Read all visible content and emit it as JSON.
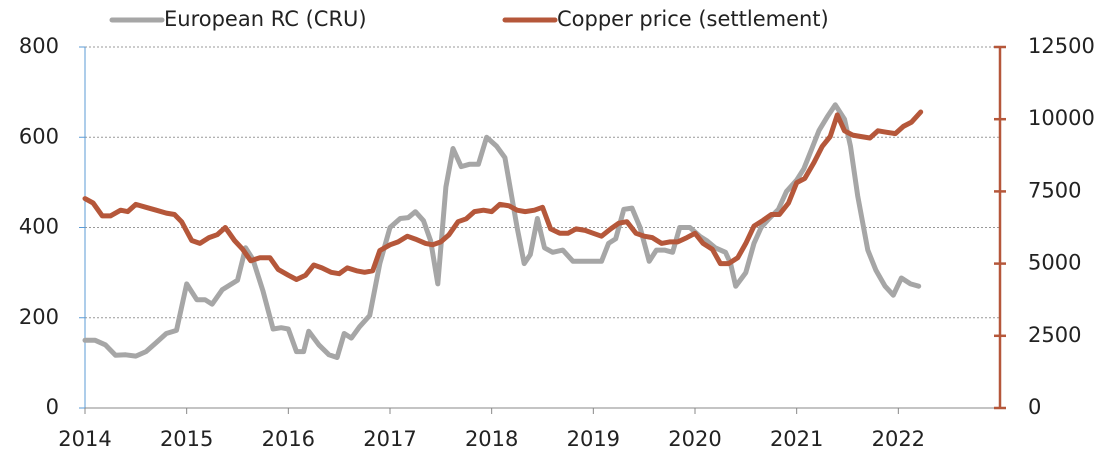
{
  "chart_data": {
    "type": "line",
    "xlim": [
      2014,
      2023
    ],
    "xticks": [
      2014,
      2015,
      2016,
      2017,
      2018,
      2019,
      2020,
      2021,
      2022
    ],
    "ylim": [
      0,
      800
    ],
    "yticks": [
      0,
      200,
      400,
      600,
      800
    ],
    "y2lim": [
      0,
      12500
    ],
    "y2ticks": [
      0,
      2500,
      5000,
      7500,
      10000,
      12500
    ],
    "grid": true,
    "legend": "top",
    "series": [
      {
        "name": "European RC (CRU)",
        "color": "#a6a6a6",
        "x": [
          2014.0,
          2014.1,
          2014.2,
          2014.3,
          2014.4,
          2014.5,
          2014.6,
          2014.7,
          2014.8,
          2014.9,
          2015.0,
          2015.1,
          2015.18,
          2015.25,
          2015.35,
          2015.5,
          2015.58,
          2015.65,
          2015.75,
          2015.85,
          2015.93,
          2016.0,
          2016.08,
          2016.15,
          2016.2,
          2016.3,
          2016.4,
          2016.48,
          2016.55,
          2016.62,
          2016.7,
          2016.8,
          2016.9,
          2017.0,
          2017.1,
          2017.18,
          2017.25,
          2017.33,
          2017.4,
          2017.47,
          2017.55,
          2017.62,
          2017.7,
          2017.78,
          2017.87,
          2017.95,
          2018.05,
          2018.13,
          2018.25,
          2018.32,
          2018.38,
          2018.45,
          2018.52,
          2018.6,
          2018.7,
          2018.8,
          2018.9,
          2019.0,
          2019.08,
          2019.15,
          2019.22,
          2019.3,
          2019.38,
          2019.46,
          2019.55,
          2019.62,
          2019.7,
          2019.78,
          2019.85,
          2019.95,
          2020.05,
          2020.12,
          2020.2,
          2020.3,
          2020.35,
          2020.4,
          2020.5,
          2020.58,
          2020.65,
          2020.73,
          2020.82,
          2020.9,
          2021.0,
          2021.07,
          2021.15,
          2021.22,
          2021.3,
          2021.38,
          2021.47,
          2021.53,
          2021.6,
          2021.7,
          2021.78,
          2021.87,
          2021.95,
          2022.03,
          2022.12,
          2022.2
        ],
        "values": [
          150,
          150,
          140,
          117,
          118,
          115,
          125,
          145,
          165,
          172,
          275,
          240,
          240,
          230,
          262,
          283,
          355,
          330,
          260,
          175,
          178,
          175,
          125,
          125,
          170,
          140,
          118,
          112,
          165,
          155,
          180,
          205,
          320,
          400,
          420,
          422,
          435,
          415,
          370,
          275,
          490,
          575,
          535,
          540,
          540,
          600,
          580,
          555,
          400,
          320,
          340,
          420,
          355,
          345,
          350,
          325,
          325,
          325,
          325,
          365,
          375,
          440,
          443,
          400,
          325,
          350,
          350,
          345,
          400,
          400,
          380,
          370,
          355,
          345,
          320,
          270,
          300,
          365,
          400,
          420,
          440,
          480,
          505,
          530,
          575,
          615,
          645,
          672,
          640,
          580,
          470,
          350,
          305,
          270,
          250,
          288,
          275,
          270
        ]
      },
      {
        "name": "Copper price (settlement)",
        "color": "#b5573a",
        "axis": "y2",
        "x": [
          2014.0,
          2014.08,
          2014.17,
          2014.25,
          2014.35,
          2014.42,
          2014.5,
          2014.6,
          2014.7,
          2014.8,
          2014.88,
          2014.95,
          2015.05,
          2015.13,
          2015.22,
          2015.3,
          2015.38,
          2015.47,
          2015.55,
          2015.63,
          2015.72,
          2015.82,
          2015.9,
          2016.0,
          2016.08,
          2016.17,
          2016.25,
          2016.33,
          2016.42,
          2016.5,
          2016.58,
          2016.67,
          2016.75,
          2016.83,
          2016.9,
          2017.0,
          2017.08,
          2017.17,
          2017.25,
          2017.35,
          2017.42,
          2017.5,
          2017.58,
          2017.67,
          2017.75,
          2017.83,
          2017.92,
          2018.0,
          2018.08,
          2018.17,
          2018.25,
          2018.33,
          2018.42,
          2018.5,
          2018.58,
          2018.67,
          2018.75,
          2018.83,
          2018.92,
          2019.0,
          2019.08,
          2019.17,
          2019.25,
          2019.33,
          2019.42,
          2019.5,
          2019.58,
          2019.67,
          2019.75,
          2019.83,
          2019.92,
          2020.0,
          2020.08,
          2020.17,
          2020.25,
          2020.33,
          2020.42,
          2020.5,
          2020.58,
          2020.67,
          2020.75,
          2020.83,
          2020.92,
          2021.0,
          2021.08,
          2021.17,
          2021.25,
          2021.33,
          2021.4,
          2021.47,
          2021.55,
          2021.63,
          2021.72,
          2021.8,
          2021.88,
          2021.97,
          2022.05,
          2022.13,
          2022.22
        ],
        "values": [
          7250,
          7100,
          6650,
          6650,
          6850,
          6800,
          7050,
          6950,
          6850,
          6750,
          6700,
          6450,
          5800,
          5700,
          5900,
          6000,
          6250,
          5800,
          5500,
          5100,
          5200,
          5200,
          4800,
          4600,
          4450,
          4600,
          4950,
          4850,
          4700,
          4650,
          4850,
          4750,
          4700,
          4750,
          5450,
          5650,
          5750,
          5950,
          5850,
          5700,
          5650,
          5750,
          6000,
          6450,
          6550,
          6800,
          6850,
          6800,
          7050,
          7000,
          6850,
          6800,
          6850,
          6950,
          6200,
          6050,
          6050,
          6200,
          6150,
          6050,
          5950,
          6200,
          6400,
          6450,
          6050,
          5950,
          5900,
          5700,
          5750,
          5750,
          5900,
          6050,
          5700,
          5500,
          5000,
          5000,
          5200,
          5700,
          6300,
          6500,
          6700,
          6700,
          7100,
          7800,
          7950,
          8500,
          9050,
          9400,
          10150,
          9600,
          9450,
          9400,
          9350,
          9600,
          9550,
          9500,
          9750,
          9900,
          10250
        ]
      }
    ]
  }
}
